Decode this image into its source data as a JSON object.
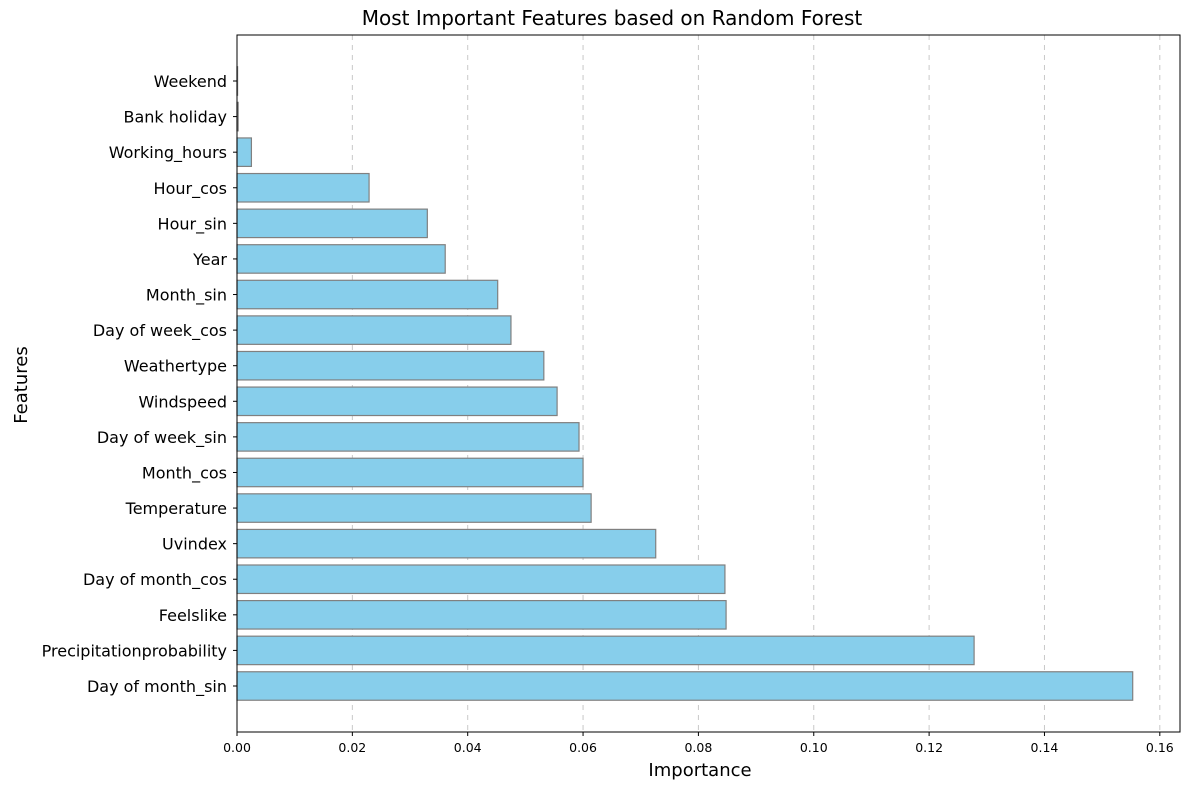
{
  "chart_data": {
    "type": "bar",
    "orientation": "horizontal",
    "title": "Most Important Features based on Random Forest",
    "xlabel": "Importance",
    "ylabel": "Features",
    "xlim": [
      0,
      0.1635
    ],
    "xticks": [
      "0.00",
      "0.02",
      "0.04",
      "0.06",
      "0.08",
      "0.10",
      "0.12",
      "0.14",
      "0.16"
    ],
    "grid": "x-axis dashed",
    "legend": "none",
    "bar_color": "#87CEEB",
    "bar_edge_color": "#808080",
    "categories": [
      "Day of month_sin",
      "Precipitationprobability",
      "Feelslike",
      "Day of month_cos",
      "Uvindex",
      "Temperature",
      "Month_cos",
      "Day of week_sin",
      "Windspeed",
      "Weathertype",
      "Day of week_cos",
      "Month_sin",
      "Year",
      "Hour_sin",
      "Hour_cos",
      "Working_hours",
      "Bank holiday",
      "Weekend"
    ],
    "values": [
      0.1553,
      0.1278,
      0.0848,
      0.0846,
      0.0726,
      0.0614,
      0.06,
      0.0593,
      0.0555,
      0.0532,
      0.0475,
      0.0452,
      0.0361,
      0.033,
      0.0229,
      0.0025,
      0.0002,
      0.0001
    ]
  }
}
